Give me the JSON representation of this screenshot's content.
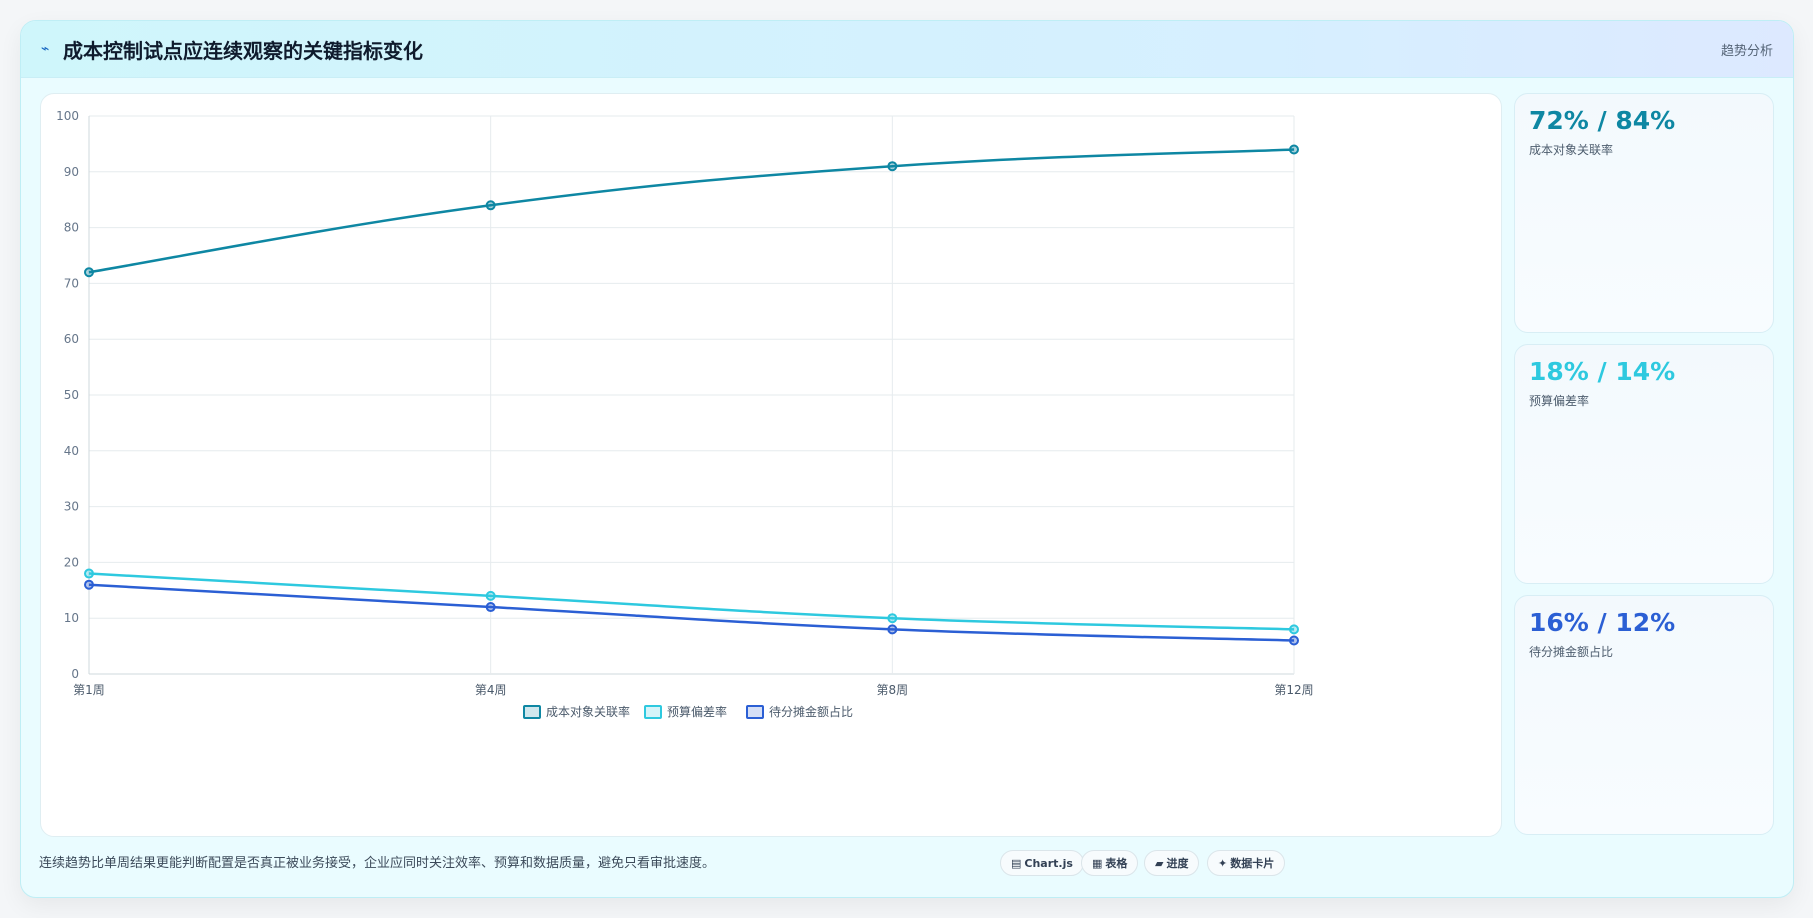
{
  "header": {
    "icon": "trend-line-icon",
    "title": "成本控制试点应连续观察的关键指标变化",
    "tag": "趋势分析"
  },
  "kpis": [
    {
      "value": "72% / 84%",
      "label": "成本对象关联率",
      "color": "#0e87a3"
    },
    {
      "value": "18% / 14%",
      "label": "预算偏差率",
      "color": "#2ec9df"
    },
    {
      "value": "16% / 12%",
      "label": "待分摊金额占比",
      "color": "#2b5fd4"
    }
  ],
  "footer": {
    "note": "连续趋势比单周结果更能判断配置是否真正被业务接受，企业应同时关注效率、预算和数据质量，避免只看审批速度。",
    "chips": [
      {
        "icon": "chart-icon",
        "glyph": "▤",
        "label": "Chart.js"
      },
      {
        "icon": "table-icon",
        "glyph": "▦",
        "label": "表格"
      },
      {
        "icon": "progress-icon",
        "glyph": "▰",
        "label": "进度"
      },
      {
        "icon": "data-card-icon",
        "glyph": "✦",
        "label": "数据卡片"
      }
    ]
  },
  "chart_data": {
    "type": "line",
    "categories": [
      "第1周",
      "第4周",
      "第8周",
      "第12周"
    ],
    "ylim": [
      0,
      100
    ],
    "yticks": [
      0,
      10,
      20,
      30,
      40,
      50,
      60,
      70,
      80,
      90,
      100
    ],
    "grid": true,
    "legend": "bottom-center",
    "series": [
      {
        "name": "成本对象关联率",
        "values": [
          72,
          84,
          91,
          94
        ],
        "color": "#0e87a3"
      },
      {
        "name": "预算偏差率",
        "values": [
          18,
          14,
          10,
          8
        ],
        "color": "#2ec9df"
      },
      {
        "name": "待分摊金额占比",
        "values": [
          16,
          12,
          8,
          6
        ],
        "color": "#2b5fd4"
      }
    ]
  }
}
